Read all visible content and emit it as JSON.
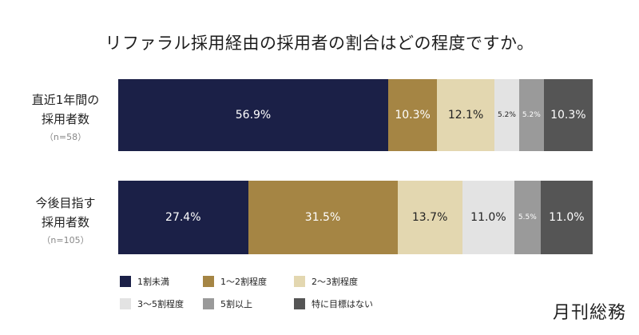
{
  "title": "リファラル採用経由の採用者の割合はどの程度ですか。",
  "brand": "月刊総務",
  "chart_data": {
    "type": "bar",
    "orientation": "horizontal",
    "stacked": true,
    "normalized": true,
    "title": "リファラル採用経由の採用者の割合はどの程度ですか。",
    "categories": [
      {
        "line1": "直近1年間の",
        "line2": "採用者数",
        "n": "（n=58）"
      },
      {
        "line1": "今後目指す",
        "line2": "採用者数",
        "n": "（n=105）"
      }
    ],
    "series": [
      {
        "name": "1割未満",
        "color": "#1b2047",
        "text_color": "#ffffff",
        "values": [
          56.9,
          27.4
        ],
        "labels": [
          "56.9%",
          "27.4%"
        ]
      },
      {
        "name": "1〜2割程度",
        "color": "#a58544",
        "text_color": "#ffffff",
        "values": [
          10.3,
          31.5
        ],
        "labels": [
          "10.3%",
          "31.5%"
        ]
      },
      {
        "name": "2〜3割程度",
        "color": "#e3d7b0",
        "text_color": "#222222",
        "values": [
          12.1,
          13.7
        ],
        "labels": [
          "12.1%",
          "13.7%"
        ]
      },
      {
        "name": "3〜5割程度",
        "color": "#e3e3e3",
        "text_color": "#222222",
        "values": [
          5.2,
          11.0
        ],
        "labels": [
          "5.2%",
          "11.0%"
        ]
      },
      {
        "name": "5割以上",
        "color": "#9a9a9a",
        "text_color": "#ffffff",
        "values": [
          5.2,
          5.5
        ],
        "labels": [
          "5.2%",
          "5.5%"
        ]
      },
      {
        "name": "特に目標はない",
        "color": "#555555",
        "text_color": "#ffffff",
        "values": [
          10.3,
          11.0
        ],
        "labels": [
          "10.3%",
          "11.0%"
        ]
      }
    ],
    "legend_position": "bottom-left",
    "grid": false
  }
}
